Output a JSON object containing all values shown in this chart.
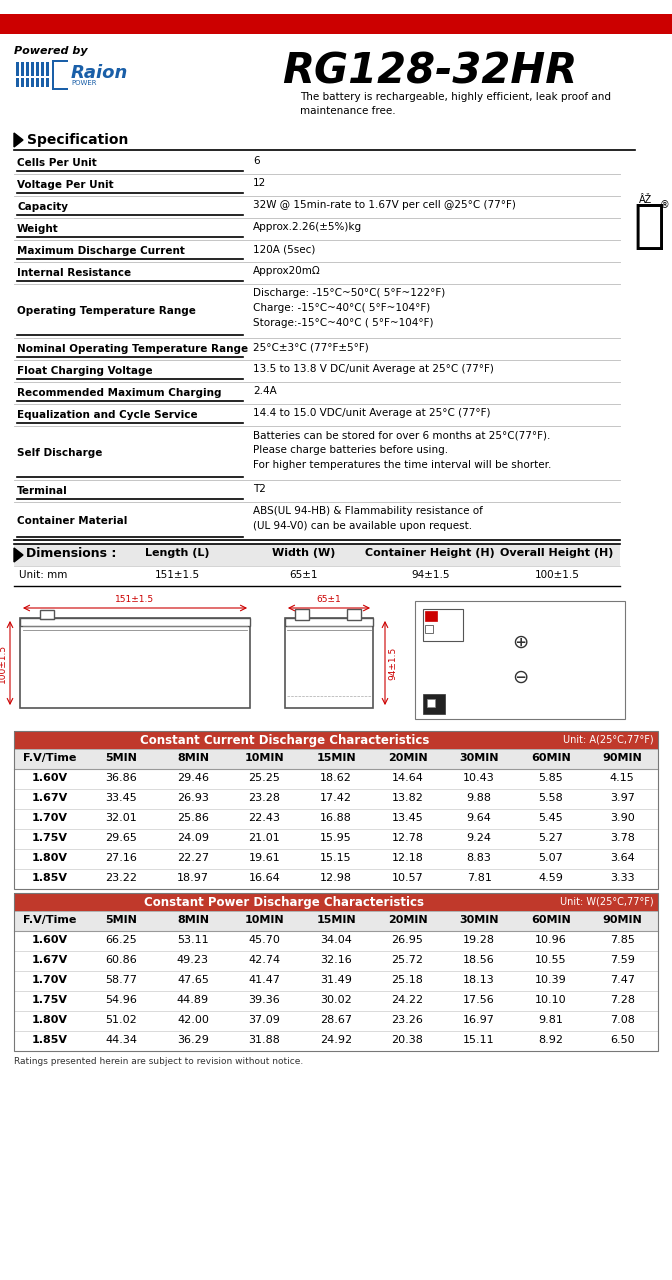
{
  "title": "RG128-32HR",
  "powered_by": "Powered by",
  "tagline": "The battery is rechargeable, highly efficient, leak proof and\nmaintenance free.",
  "spec_title": "Specification",
  "spec_rows": [
    [
      "Cells Per Unit",
      "6",
      1
    ],
    [
      "Voltage Per Unit",
      "12",
      1
    ],
    [
      "Capacity",
      "32W @ 15min-rate to 1.67V per cell @25°C (77°F)",
      1
    ],
    [
      "Weight",
      "Approx.2.26(±5%)kg",
      1
    ],
    [
      "Maximum Discharge Current",
      "120A (5sec)",
      1
    ],
    [
      "Internal Resistance",
      "Approx20mΩ",
      1
    ],
    [
      "Operating Temperature Range",
      "Discharge: -15°C~50°C( 5°F~122°F)\nCharge: -15°C~40°C( 5°F~104°F)\nStorage:-15°C~40°C ( 5°F~104°F)",
      3
    ],
    [
      "Nominal Operating Temperature Range",
      "25°C±3°C (77°F±5°F)",
      1
    ],
    [
      "Float Charging Voltage",
      "13.5 to 13.8 V DC/unit Average at 25°C (77°F)",
      1
    ],
    [
      "Recommended Maximum Charging",
      "2.4A",
      1
    ],
    [
      "Equalization and Cycle Service",
      "14.4 to 15.0 VDC/unit Average at 25°C (77°F)",
      1
    ],
    [
      "Self Discharge",
      "Batteries can be stored for over 6 months at 25°C(77°F).\nPlease charge batteries before using.\nFor higher temperatures the time interval will be shorter.",
      3
    ],
    [
      "Terminal",
      "T2",
      1
    ],
    [
      "Container Material",
      "ABS(UL 94-HB) & Flammability resistance of\n(UL 94-V0) can be available upon request.",
      2
    ]
  ],
  "dim_title": "Dimensions :",
  "dim_headers": [
    "Length (L)",
    "Width (W)",
    "Container Height (H)",
    "Overall Height (H)"
  ],
  "dim_unit": "Unit: mm",
  "dim_values": [
    "151±1.5",
    "65±1",
    "94±1.5",
    "100±1.5"
  ],
  "cc_title": "Constant Current Discharge Characteristics",
  "cc_unit": "Unit: A(25°C,77°F)",
  "cc_headers": [
    "F.V/Time",
    "5MIN",
    "8MIN",
    "10MIN",
    "15MIN",
    "20MIN",
    "30MIN",
    "60MIN",
    "90MIN"
  ],
  "cc_data": [
    [
      "1.60V",
      "36.86",
      "29.46",
      "25.25",
      "18.62",
      "14.64",
      "10.43",
      "5.85",
      "4.15"
    ],
    [
      "1.67V",
      "33.45",
      "26.93",
      "23.28",
      "17.42",
      "13.82",
      "9.88",
      "5.58",
      "3.97"
    ],
    [
      "1.70V",
      "32.01",
      "25.86",
      "22.43",
      "16.88",
      "13.45",
      "9.64",
      "5.45",
      "3.90"
    ],
    [
      "1.75V",
      "29.65",
      "24.09",
      "21.01",
      "15.95",
      "12.78",
      "9.24",
      "5.27",
      "3.78"
    ],
    [
      "1.80V",
      "27.16",
      "22.27",
      "19.61",
      "15.15",
      "12.18",
      "8.83",
      "5.07",
      "3.64"
    ],
    [
      "1.85V",
      "23.22",
      "18.97",
      "16.64",
      "12.98",
      "10.57",
      "7.81",
      "4.59",
      "3.33"
    ]
  ],
  "cp_title": "Constant Power Discharge Characteristics",
  "cp_unit": "Unit: W(25°C,77°F)",
  "cp_headers": [
    "F.V/Time",
    "5MIN",
    "8MIN",
    "10MIN",
    "15MIN",
    "20MIN",
    "30MIN",
    "60MIN",
    "90MIN"
  ],
  "cp_data": [
    [
      "1.60V",
      "66.25",
      "53.11",
      "45.70",
      "34.04",
      "26.95",
      "19.28",
      "10.96",
      "7.85"
    ],
    [
      "1.67V",
      "60.86",
      "49.23",
      "42.74",
      "32.16",
      "25.72",
      "18.56",
      "10.55",
      "7.59"
    ],
    [
      "1.70V",
      "58.77",
      "47.65",
      "41.47",
      "31.49",
      "25.18",
      "18.13",
      "10.39",
      "7.47"
    ],
    [
      "1.75V",
      "54.96",
      "44.89",
      "39.36",
      "30.02",
      "24.22",
      "17.56",
      "10.10",
      "7.28"
    ],
    [
      "1.80V",
      "51.02",
      "42.00",
      "37.09",
      "28.67",
      "23.26",
      "16.97",
      "9.81",
      "7.08"
    ],
    [
      "1.85V",
      "44.34",
      "36.29",
      "31.88",
      "24.92",
      "20.38",
      "15.11",
      "8.92",
      "6.50"
    ]
  ],
  "footer": "Ratings presented herein are subject to revision without notice.",
  "red_bar_color": "#cc0000",
  "table_header_bg": "#c0392b",
  "table_header_text": "#ffffff",
  "white": "#ffffff",
  "black": "#000000",
  "light_gray": "#e8e8e8",
  "mid_gray": "#cccccc",
  "blue_color": "#1a5fa8",
  "line_color": "#888888",
  "row_line_color": "#bbbbbb"
}
